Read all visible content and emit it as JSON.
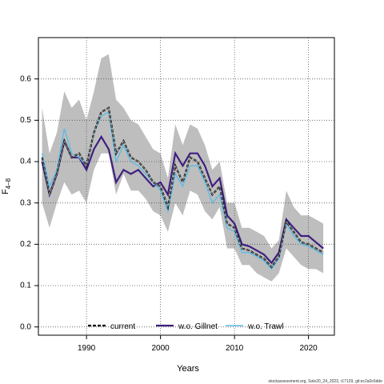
{
  "chart_data": {
    "type": "line",
    "title": "",
    "xlabel": "Years",
    "ylabel_main": "F",
    "ylabel_sub": "4–8",
    "xlim": [
      1983.5,
      2023.5
    ],
    "ylim": [
      -0.02,
      0.7
    ],
    "xticks": [
      1990,
      2000,
      2010,
      2020
    ],
    "yticks": [
      0.0,
      0.1,
      0.2,
      0.3,
      0.4,
      0.5,
      0.6
    ],
    "grid": true,
    "legend_position": "bottom",
    "x": [
      1984,
      1985,
      1986,
      1987,
      1988,
      1989,
      1990,
      1991,
      1992,
      1993,
      1994,
      1995,
      1996,
      1997,
      1998,
      1999,
      2000,
      2001,
      2002,
      2003,
      2004,
      2005,
      2006,
      2007,
      2008,
      2009,
      2010,
      2011,
      2012,
      2013,
      2014,
      2015,
      2016,
      2017,
      2018,
      2019,
      2020,
      2021,
      2022
    ],
    "confidence_band": {
      "name": "current",
      "color": "#bebebe",
      "upper": [
        0.53,
        0.42,
        0.47,
        0.57,
        0.53,
        0.55,
        0.5,
        0.57,
        0.65,
        0.66,
        0.55,
        0.53,
        0.5,
        0.49,
        0.46,
        0.43,
        0.42,
        0.36,
        0.49,
        0.44,
        0.49,
        0.48,
        0.44,
        0.38,
        0.4,
        0.3,
        0.3,
        0.24,
        0.24,
        0.23,
        0.22,
        0.19,
        0.21,
        0.33,
        0.29,
        0.27,
        0.27,
        0.26,
        0.25
      ],
      "lower": [
        0.3,
        0.24,
        0.3,
        0.35,
        0.32,
        0.33,
        0.3,
        0.38,
        0.42,
        0.42,
        0.32,
        0.37,
        0.33,
        0.33,
        0.31,
        0.28,
        0.27,
        0.23,
        0.3,
        0.27,
        0.33,
        0.32,
        0.28,
        0.26,
        0.29,
        0.19,
        0.19,
        0.15,
        0.15,
        0.13,
        0.12,
        0.11,
        0.13,
        0.19,
        0.17,
        0.15,
        0.14,
        0.14,
        0.13
      ]
    },
    "series": [
      {
        "name": "current",
        "color": "#000000",
        "style": "dashed",
        "values": [
          0.41,
          0.32,
          0.37,
          0.45,
          0.41,
          0.42,
          0.39,
          0.47,
          0.52,
          0.53,
          0.42,
          0.45,
          0.41,
          0.4,
          0.38,
          0.35,
          0.34,
          0.29,
          0.39,
          0.35,
          0.41,
          0.4,
          0.36,
          0.32,
          0.34,
          0.25,
          0.24,
          0.19,
          0.185,
          0.175,
          0.165,
          0.145,
          0.17,
          0.255,
          0.23,
          0.205,
          0.2,
          0.19,
          0.18
        ]
      },
      {
        "name": "w.o. Gillnet",
        "color": "#3f1f7f",
        "style": "solid",
        "values": [
          0.4,
          0.32,
          0.37,
          0.45,
          0.41,
          0.41,
          0.38,
          0.43,
          0.46,
          0.43,
          0.35,
          0.38,
          0.37,
          0.38,
          0.36,
          0.34,
          0.35,
          0.32,
          0.42,
          0.39,
          0.42,
          0.42,
          0.39,
          0.34,
          0.36,
          0.27,
          0.25,
          0.2,
          0.195,
          0.185,
          0.175,
          0.155,
          0.18,
          0.26,
          0.24,
          0.22,
          0.22,
          0.205,
          0.19
        ]
      },
      {
        "name": "w.o. Trawl",
        "color": "#5bbce6",
        "style": "solid",
        "values": [
          0.42,
          0.34,
          0.38,
          0.48,
          0.42,
          0.41,
          0.39,
          0.47,
          0.51,
          0.52,
          0.4,
          0.44,
          0.4,
          0.39,
          0.37,
          0.35,
          0.33,
          0.28,
          0.37,
          0.34,
          0.39,
          0.39,
          0.35,
          0.3,
          0.32,
          0.24,
          0.23,
          0.18,
          0.18,
          0.17,
          0.16,
          0.14,
          0.165,
          0.25,
          0.22,
          0.2,
          0.195,
          0.185,
          0.175
        ]
      }
    ],
    "credit": "stockassessment.org, Sole20_24_2023, r17129, git:ec2a0c6dde"
  }
}
